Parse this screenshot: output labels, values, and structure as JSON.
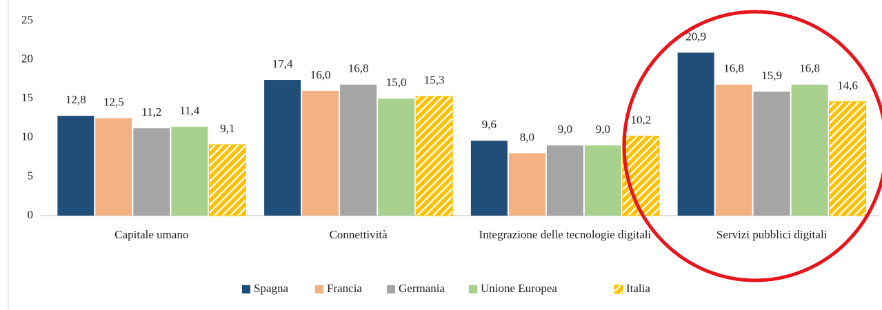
{
  "chart_data": {
    "type": "bar",
    "categories": [
      "Capitale umano",
      "Connettività",
      "Integrazione delle tecnologie digitali",
      "Servizi pubblici digitali"
    ],
    "series": [
      {
        "name": "Spagna",
        "color": "#1f4e79",
        "values": [
          12.8,
          17.4,
          9.6,
          20.9
        ],
        "value_labels": [
          "12,8",
          "17,4",
          "9,6",
          "20,9"
        ]
      },
      {
        "name": "Francia",
        "color": "#f4b183",
        "values": [
          12.5,
          16.0,
          8.0,
          16.8
        ],
        "value_labels": [
          "12,5",
          "16,0",
          "8,0",
          "16,8"
        ]
      },
      {
        "name": "Germania",
        "color": "#a5a5a5",
        "values": [
          11.2,
          16.8,
          9.0,
          15.9
        ],
        "value_labels": [
          "11,2",
          "16,8",
          "9,0",
          "15,9"
        ]
      },
      {
        "name": "Unione Europea",
        "color": "#a9d18e",
        "values": [
          11.4,
          15.0,
          9.0,
          16.8
        ],
        "value_labels": [
          "11,4",
          "15,0",
          "9,0",
          "16,8"
        ]
      },
      {
        "name": "Italia",
        "color": "#ffc000",
        "pattern": "hatch",
        "values": [
          9.1,
          15.3,
          10.2,
          14.6
        ],
        "value_labels": [
          "9,1",
          "15,3",
          "10,2",
          "14,6"
        ]
      }
    ],
    "ylim": [
      0,
      25
    ],
    "yticks": [
      0,
      5,
      10,
      15,
      20,
      25
    ],
    "grid": false,
    "legend": "bottom"
  }
}
